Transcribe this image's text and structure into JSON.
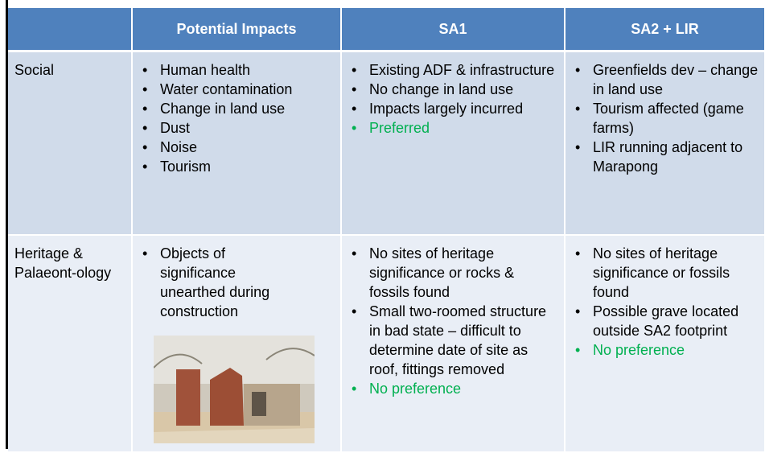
{
  "table": {
    "headers": [
      "Potential Impacts",
      "SA1",
      "SA2 + LIR"
    ],
    "rows": [
      {
        "label": "Social",
        "cells": [
          [
            "Human health",
            "Water contamination",
            "Change in land use",
            "Dust",
            "Noise",
            "Tourism"
          ],
          [
            "Existing ADF & infrastructure",
            "No change in land use",
            "Impacts largely incurred",
            {
              "text": "Preferred",
              "color": "#00b050"
            }
          ],
          [
            "Greenfields dev – change in land use",
            "Tourism affected (game farms)",
            "LIR running adjacent to Marapong"
          ]
        ]
      },
      {
        "label": "Heritage & Palaeont-ology",
        "cells": [
          [
            "Objects of significance unearthed during construction"
          ],
          [
            "No sites of heritage significance or rocks & fossils found",
            "Small two-roomed structure in bad state – difficult to determine date of site as roof, fittings removed",
            {
              "text": "No preference",
              "color": "#00b050"
            }
          ],
          [
            "No sites of heritage significance  or fossils found",
            "Possible grave located outside SA2 footprint",
            {
              "text": "No preference",
              "color": "#00b050"
            }
          ]
        ]
      }
    ]
  }
}
